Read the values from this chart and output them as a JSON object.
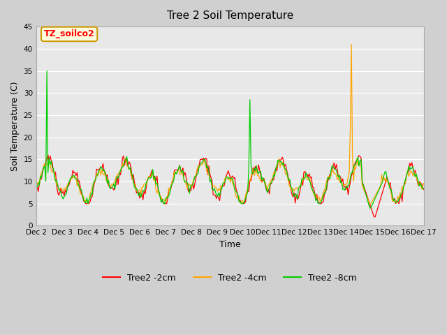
{
  "title": "Tree 2 Soil Temperature",
  "ylabel": "Soil Temperature (C)",
  "xlabel": "Time",
  "annotation": "TZ_soilco2",
  "ylim": [
    0,
    45
  ],
  "yticks": [
    0,
    5,
    10,
    15,
    20,
    25,
    30,
    35,
    40,
    45
  ],
  "x_labels": [
    "Dec 2",
    "Dec 3",
    "Dec 4",
    "Dec 5",
    "Dec 6",
    "Dec 7",
    "Dec 8",
    "Dec 9",
    "Dec 10",
    "Dec 11",
    "Dec 12",
    "Dec 13",
    "Dec 14",
    "Dec 15",
    "Dec 16",
    "Dec 17"
  ],
  "legend_labels": [
    "Tree2 -2cm",
    "Tree2 -4cm",
    "Tree2 -8cm"
  ],
  "legend_colors": [
    "#ff0000",
    "#ffa500",
    "#00cc00"
  ],
  "line_colors": {
    "2cm": "#ff0000",
    "4cm": "#ffa500",
    "8cm": "#00cc00"
  }
}
